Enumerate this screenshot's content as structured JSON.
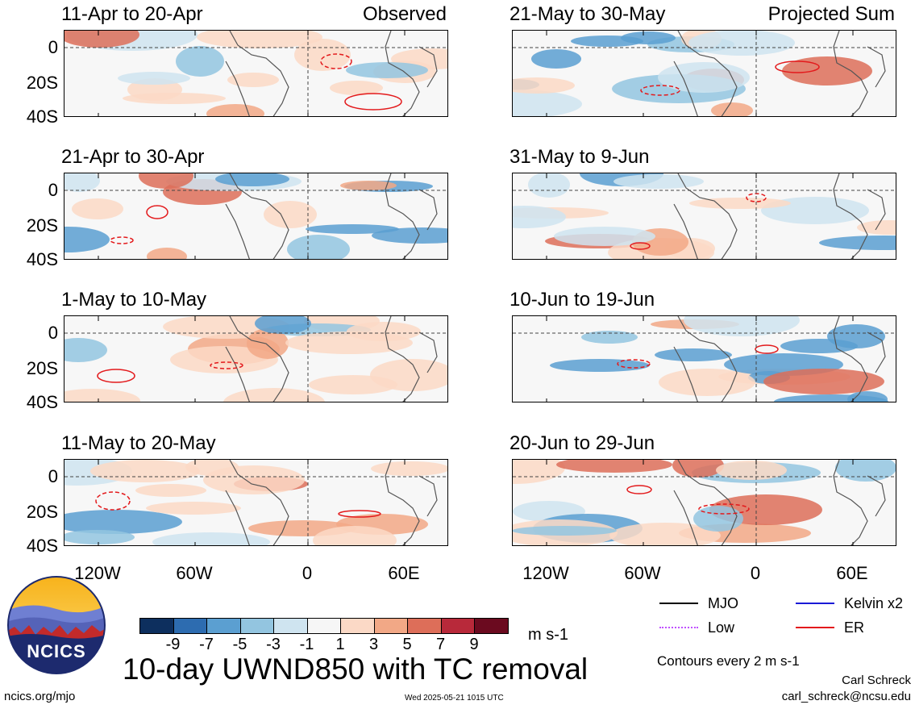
{
  "panels": [
    {
      "title": "11-Apr to 20-Apr",
      "note": "Observed"
    },
    {
      "title": "21-Apr to 30-Apr",
      "note": ""
    },
    {
      "title": "1-May to 10-May",
      "note": ""
    },
    {
      "title": "11-May to 20-May",
      "note": ""
    },
    {
      "title": "21-May to 30-May",
      "note": "Projected Sum"
    },
    {
      "title": "31-May to 9-Jun",
      "note": ""
    },
    {
      "title": "10-Jun to 19-Jun",
      "note": ""
    },
    {
      "title": "20-Jun to 29-Jun",
      "note": ""
    }
  ],
  "y_ticks": [
    "0",
    "20S",
    "40S"
  ],
  "x_ticks": [
    "120W",
    "60W",
    "0",
    "60E"
  ],
  "colorbar": {
    "colors": [
      "#0d2f5e",
      "#2d6cb0",
      "#5b9fd1",
      "#93c5e0",
      "#cfe4f0",
      "#f6f6f6",
      "#fbd9c6",
      "#f2a886",
      "#dd6e59",
      "#b8293a",
      "#6b0a1f"
    ],
    "labels": [
      "-9",
      "-7",
      "-5",
      "-3",
      "-1",
      "1",
      "3",
      "5",
      "7",
      "9"
    ],
    "units": "m s-1"
  },
  "legend": [
    {
      "label": "MJO",
      "color": "#000000",
      "style": "solid"
    },
    {
      "label": "Kelvin x2",
      "color": "#1a1ad6",
      "style": "solid"
    },
    {
      "label": "Low",
      "color": "#c050ff",
      "style": "dotted"
    },
    {
      "label": "ER",
      "color": "#e31a1c",
      "style": "solid"
    }
  ],
  "contour_note": "Contours every 2 m s-1",
  "main_title": "10-day UWND850 with TC removal",
  "logo_text": "NCICS",
  "footer": {
    "left": "ncics.org/mjo",
    "center": "Wed 2025-05-21 1015 UTC",
    "author": "Carl Schreck",
    "email": "carl_schreck@ncsu.edu"
  }
}
